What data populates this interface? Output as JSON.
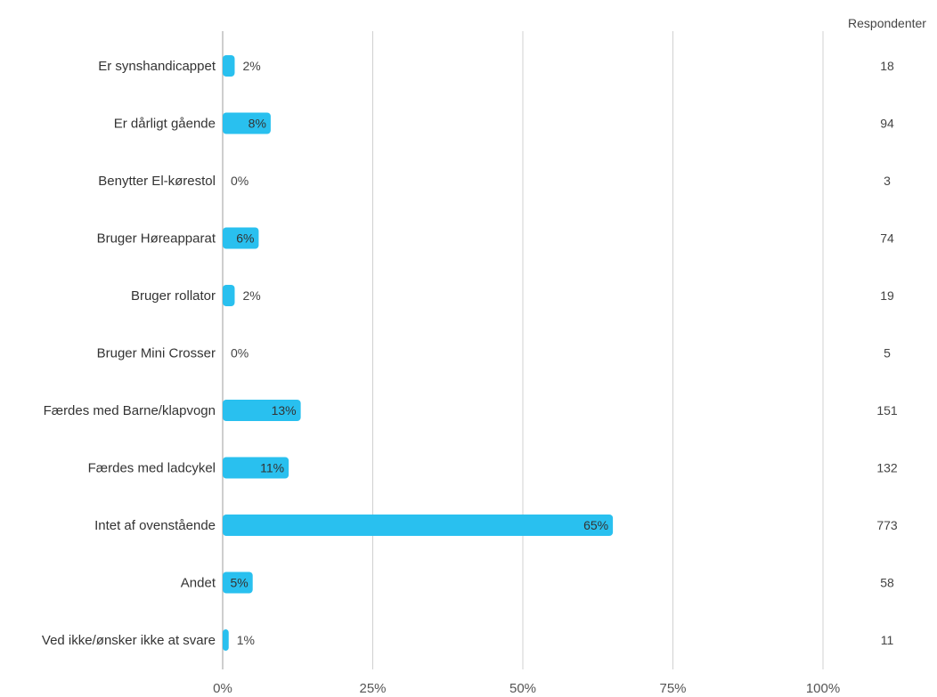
{
  "chart_data": {
    "type": "bar",
    "orientation": "horizontal",
    "categories": [
      "Er synshandicappet",
      "Er dårligt gående",
      "Benytter El-kørestol",
      "Bruger Høreapparat",
      "Bruger rollator",
      "Bruger Mini Crosser",
      "Færdes med Barne/klapvogn",
      "Færdes med ladcykel",
      "Intet af ovenstående",
      "Andet",
      "Ved ikke/ønsker ikke at svare"
    ],
    "values": [
      2,
      8,
      0,
      6,
      2,
      0,
      13,
      11,
      65,
      5,
      1
    ],
    "value_labels": [
      "2%",
      "8%",
      "0%",
      "6%",
      "2%",
      "0%",
      "13%",
      "11%",
      "65%",
      "5%",
      "1%"
    ],
    "respondents_header": "Respondenter",
    "respondents": [
      "18",
      "94",
      "3",
      "74",
      "19",
      "5",
      "151",
      "132",
      "773",
      "58",
      "11"
    ],
    "xlim": [
      0,
      100
    ],
    "xticks": [
      0,
      25,
      50,
      75,
      100
    ],
    "xtick_labels": [
      "0%",
      "25%",
      "50%",
      "75%",
      "100%"
    ],
    "grid": true,
    "bar_color": "#29c0ef",
    "grid_color": "#d0d0d0",
    "axis_color": "#bdbdbd"
  }
}
